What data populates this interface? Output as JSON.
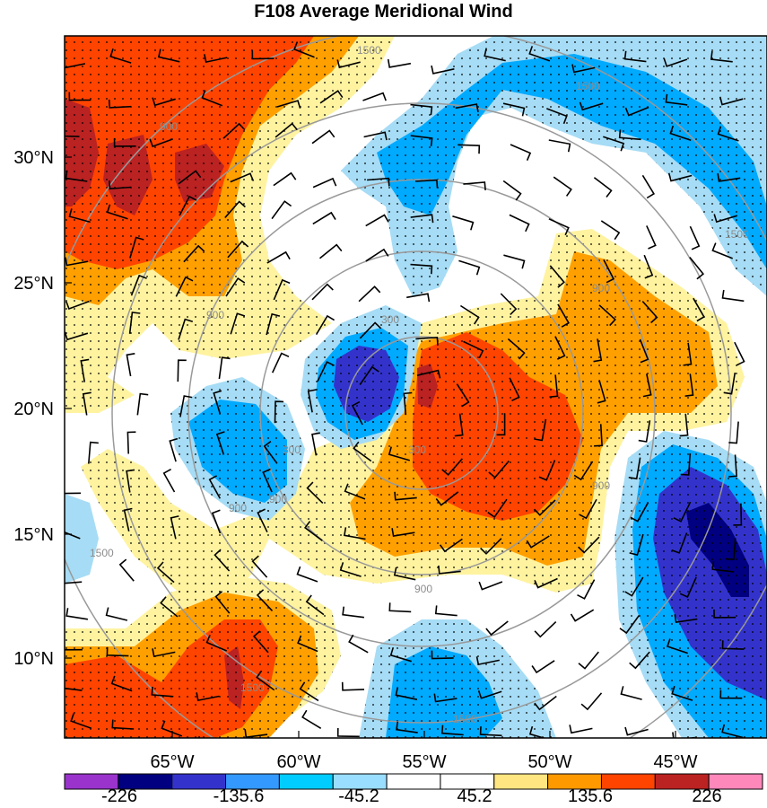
{
  "title": "F108 Average Meridional Wind",
  "lat_labels": [
    "30°N",
    "25°N",
    "20°N",
    "15°N",
    "10°N"
  ],
  "lon_labels": [
    "65°W",
    "60°W",
    "55°W",
    "50°W",
    "45°W"
  ],
  "colorbar": {
    "colors": [
      "#9933cc",
      "#000080",
      "#3333cc",
      "#3399ff",
      "#00ccff",
      "#99ddff",
      "#ffffff",
      "#ffffff",
      "#ffe680",
      "#ff9900",
      "#ff4400",
      "#bb2222",
      "#ff88bb"
    ],
    "labels": [
      "-226",
      "-135.6",
      "-45.2",
      "45.2",
      "135.6",
      "226"
    ]
  },
  "contour_labels": [
    "1500",
    "1500",
    "900",
    "900",
    "900",
    "300",
    "300",
    "900",
    "900",
    "900",
    "1500",
    "1500",
    "1500",
    "1500",
    "900",
    "300"
  ],
  "fill_palette": {
    "strong_neg": "#000080",
    "neg2": "#3333cc",
    "neg1": "#00aaff",
    "neg_light": "#a6dcf5",
    "neutral": "#ffffff",
    "pos_light": "#fff3a0",
    "pos1": "#ffa000",
    "pos2": "#ff4400",
    "strong_pos": "#bb2222"
  }
}
